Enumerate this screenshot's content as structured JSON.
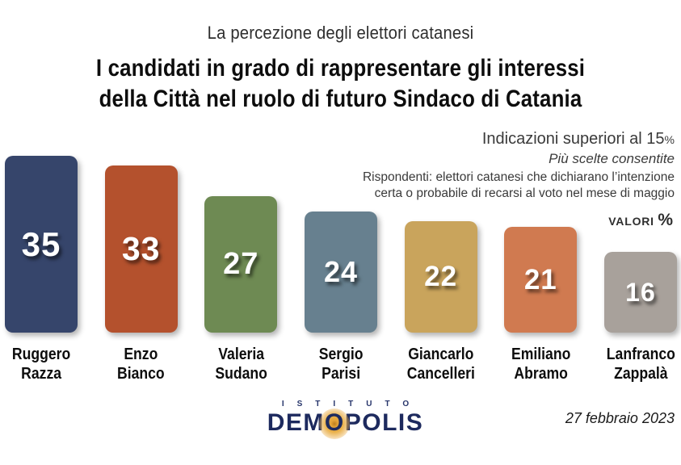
{
  "header": {
    "kicker": "La percezione degli elettori catanesi",
    "title_line1": "I candidati in grado di rappresentare gli interessi",
    "title_line2": "della Città nel ruolo di futuro Sindaco di Catania"
  },
  "notes": {
    "threshold_text": "Indicazioni superiori al 15",
    "threshold_pct": "%",
    "multi_choice": "Più scelte consentite",
    "respondents_line1": "Rispondenti: elettori catanesi che dichiarano l’intenzione",
    "respondents_line2": "certa o probabile di recarsi al voto nel mese di maggio",
    "values_label": "VALORI",
    "values_pct": "%"
  },
  "chart_data": {
    "type": "bar",
    "title": "I candidati in grado di rappresentare gli interessi della Città nel ruolo di futuro Sindaco di Catania",
    "subtitle": "La percezione degli elettori catanesi",
    "unit": "%",
    "ylim": [
      0,
      35
    ],
    "grid": false,
    "legend": false,
    "value_labels_shown": true,
    "categories": [
      "Ruggero Razza",
      "Enzo Bianco",
      "Valeria Sudano",
      "Sergio Parisi",
      "Giancarlo Cancelleri",
      "Emiliano Abramo",
      "Lanfranco Zappalà"
    ],
    "values": [
      35,
      33,
      27,
      24,
      22,
      21,
      16
    ],
    "bar_colors": [
      "#36456b",
      "#b4512d",
      "#6e8a53",
      "#67808f",
      "#c9a45c",
      "#d07a50",
      "#a8a19b"
    ]
  },
  "bars": [
    {
      "first": "Ruggero",
      "last": "Razza",
      "value": "35",
      "color": "#36456b"
    },
    {
      "first": "Enzo",
      "last": "Bianco",
      "value": "33",
      "color": "#b4512d"
    },
    {
      "first": "Valeria",
      "last": "Sudano",
      "value": "27",
      "color": "#6e8a53"
    },
    {
      "first": "Sergio",
      "last": "Parisi",
      "value": "24",
      "color": "#67808f"
    },
    {
      "first": "Giancarlo",
      "last": "Cancelleri",
      "value": "22",
      "color": "#c9a45c"
    },
    {
      "first": "Emiliano",
      "last": "Abramo",
      "value": "21",
      "color": "#d07a50"
    },
    {
      "first": "Lanfranco",
      "last": "Zappalà",
      "value": "16",
      "color": "#a8a19b"
    }
  ],
  "footer": {
    "logo_istituto": "ISTITUTO",
    "logo_demopolis_pre": "DEM",
    "logo_demopolis_o": "O",
    "logo_demopolis_post": "POLIS",
    "date": "27 febbraio 2023"
  },
  "colors": {
    "background": "#ffffff",
    "text": "#0d0d0d",
    "note_text": "#3a3a3a",
    "logo_navy": "#1d2a5e",
    "logo_sun": "#e3a338"
  }
}
